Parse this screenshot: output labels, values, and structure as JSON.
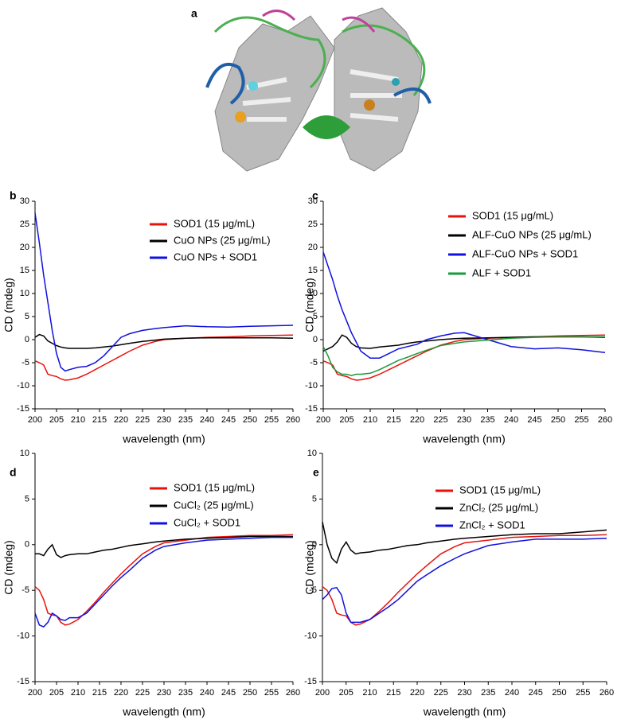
{
  "image_panel": {
    "label": "a"
  },
  "chart_data": [
    {
      "type": "line",
      "label": "b",
      "xlabel": "wavelength (nm)",
      "ylabel": "CD (mdeg)",
      "legend": "upper right",
      "xlim": [
        200,
        260
      ],
      "xticks": [
        200,
        205,
        210,
        215,
        220,
        225,
        230,
        235,
        240,
        245,
        250,
        255,
        260
      ],
      "ylim": [
        -15,
        30
      ],
      "yticks": [
        -15,
        -10,
        -5,
        0,
        5,
        10,
        15,
        20,
        25,
        30
      ],
      "x": [
        200,
        201,
        202,
        203,
        204,
        205,
        206,
        207,
        208,
        210,
        212,
        214,
        216,
        218,
        220,
        222,
        225,
        228,
        230,
        235,
        240,
        245,
        250,
        255,
        260
      ],
      "series": [
        {
          "name": "SOD1 (15 μg/mL)",
          "color": "#e8120c",
          "values": [
            -4.6,
            -5,
            -5.5,
            -7.5,
            -7.8,
            -8,
            -8.5,
            -8.8,
            -8.7,
            -8.3,
            -7.5,
            -6.5,
            -5.5,
            -4.5,
            -3.5,
            -2.5,
            -1.2,
            -0.4,
            0,
            0.3,
            0.5,
            0.6,
            0.8,
            0.9,
            1
          ]
        },
        {
          "name": "CuO NPs (25 μg/mL)",
          "color": "#000000",
          "values": [
            0.5,
            1.1,
            0.8,
            -0.3,
            -0.8,
            -1.3,
            -1.6,
            -1.8,
            -1.9,
            -1.9,
            -1.9,
            -1.8,
            -1.6,
            -1.4,
            -1.1,
            -0.8,
            -0.4,
            -0.1,
            0.1,
            0.3,
            0.4,
            0.4,
            0.4,
            0.4,
            0.3
          ]
        },
        {
          "name": "CuO NPs + SOD1",
          "color": "#1010e0",
          "values": [
            27.5,
            21,
            14,
            8,
            2,
            -3,
            -6,
            -6.8,
            -6.5,
            -6,
            -5.8,
            -5,
            -3.5,
            -1.5,
            0.5,
            1.3,
            2,
            2.4,
            2.6,
            3,
            2.8,
            2.7,
            2.9,
            3,
            3.1
          ]
        }
      ]
    },
    {
      "type": "line",
      "label": "c",
      "xlabel": "wavelength (nm)",
      "ylabel": "CD (mdeg)",
      "legend": "upper right",
      "xlim": [
        200,
        260
      ],
      "xticks": [
        200,
        205,
        210,
        215,
        220,
        225,
        230,
        235,
        240,
        245,
        250,
        255,
        260
      ],
      "ylim": [
        -15,
        30
      ],
      "yticks": [
        -15,
        -10,
        -5,
        0,
        5,
        10,
        15,
        20,
        25,
        30
      ],
      "x": [
        200,
        201,
        202,
        203,
        204,
        205,
        206,
        207,
        208,
        210,
        212,
        214,
        216,
        218,
        220,
        222,
        225,
        228,
        230,
        235,
        240,
        245,
        250,
        255,
        260
      ],
      "series": [
        {
          "name": "SOD1 (15 μg/mL)",
          "color": "#e8120c",
          "values": [
            -4.6,
            -5,
            -5.5,
            -7.5,
            -7.8,
            -8,
            -8.5,
            -8.8,
            -8.7,
            -8.3,
            -7.5,
            -6.5,
            -5.5,
            -4.5,
            -3.5,
            -2.5,
            -1.2,
            -0.4,
            0,
            0.3,
            0.5,
            0.6,
            0.8,
            0.9,
            1
          ]
        },
        {
          "name": "ALF-CuO NPs (25 μg/mL)",
          "color": "#000000",
          "values": [
            -2.5,
            -2,
            -1.5,
            -0.5,
            1,
            0.5,
            -0.8,
            -1.5,
            -1.8,
            -1.9,
            -1.6,
            -1.4,
            -1.2,
            -0.8,
            -0.5,
            -0.3,
            0,
            0.2,
            0.3,
            0.4,
            0.5,
            0.6,
            0.6,
            0.6,
            0.5
          ]
        },
        {
          "name": "ALF-CuO NPs + SOD1",
          "color": "#1010e0",
          "values": [
            19,
            16,
            13,
            9.5,
            6.5,
            4,
            1.5,
            -0.5,
            -2.5,
            -4,
            -4,
            -3,
            -2,
            -1.5,
            -1,
            0,
            0.8,
            1.4,
            1.5,
            0,
            -1.5,
            -2,
            -1.8,
            -2.2,
            -2.8
          ]
        },
        {
          "name": "ALF + SOD1",
          "color": "#1a9a3a",
          "values": [
            -1.5,
            -3.5,
            -6,
            -7,
            -7.5,
            -7.5,
            -7.8,
            -7.5,
            -7.5,
            -7.3,
            -6.5,
            -5.5,
            -4.5,
            -3.8,
            -3,
            -2.3,
            -1.3,
            -0.8,
            -0.5,
            -0.1,
            0.3,
            0.5,
            0.6,
            0.6,
            0.6
          ]
        }
      ]
    },
    {
      "type": "line",
      "label": "d",
      "xlabel": "wavelength (nm)",
      "ylabel": "CD (mdeg)",
      "legend": "upper right",
      "xlim": [
        200,
        260
      ],
      "xticks": [
        200,
        205,
        210,
        215,
        220,
        225,
        230,
        235,
        240,
        245,
        250,
        255,
        260
      ],
      "ylim": [
        -15,
        10
      ],
      "yticks": [
        -15,
        -10,
        -5,
        0,
        5,
        10
      ],
      "x": [
        200,
        201,
        202,
        203,
        204,
        205,
        206,
        207,
        208,
        210,
        212,
        214,
        216,
        218,
        220,
        222,
        225,
        228,
        230,
        235,
        240,
        245,
        250,
        255,
        260
      ],
      "series": [
        {
          "name": "SOD1 (15 μg/mL)",
          "color": "#e8120c",
          "values": [
            -4.6,
            -5,
            -6,
            -7.5,
            -7.7,
            -7.8,
            -8.5,
            -8.8,
            -8.7,
            -8.2,
            -7.3,
            -6.3,
            -5.2,
            -4.2,
            -3.2,
            -2.3,
            -1,
            -0.2,
            0.2,
            0.5,
            0.8,
            0.9,
            1,
            1,
            1.1
          ]
        },
        {
          "name": "CuCl₂ (25 μg/mL)",
          "color": "#000000",
          "values": [
            -1,
            -1,
            -1.2,
            -0.5,
            0,
            -1.1,
            -1.4,
            -1.2,
            -1.1,
            -1,
            -1,
            -0.8,
            -0.6,
            -0.5,
            -0.3,
            -0.1,
            0.1,
            0.3,
            0.4,
            0.6,
            0.7,
            0.8,
            0.9,
            0.9,
            0.9
          ]
        },
        {
          "name": "CuCl₂ + SOD1",
          "color": "#1010e0",
          "values": [
            -7.5,
            -8.8,
            -9,
            -8.5,
            -7.5,
            -7.8,
            -8.2,
            -8.3,
            -8,
            -8,
            -7.5,
            -6.5,
            -5.5,
            -4.5,
            -3.6,
            -2.8,
            -1.5,
            -0.6,
            -0.2,
            0.2,
            0.5,
            0.6,
            0.7,
            0.8,
            0.8
          ]
        }
      ]
    },
    {
      "type": "line",
      "label": "e",
      "xlabel": "wavelength (nm)",
      "ylabel": "CD (mdeg)",
      "legend": "upper right",
      "xlim": [
        200,
        260
      ],
      "xticks": [
        200,
        205,
        210,
        215,
        220,
        225,
        230,
        235,
        240,
        245,
        250,
        255,
        260
      ],
      "ylim": [
        -15,
        10
      ],
      "yticks": [
        -15,
        -10,
        -5,
        0,
        5,
        10
      ],
      "x": [
        200,
        201,
        202,
        203,
        204,
        205,
        206,
        207,
        208,
        210,
        212,
        214,
        216,
        218,
        220,
        222,
        225,
        228,
        230,
        235,
        240,
        245,
        250,
        255,
        260
      ],
      "series": [
        {
          "name": "SOD1 (15 μg/mL)",
          "color": "#e8120c",
          "values": [
            -4.6,
            -5,
            -6,
            -7.5,
            -7.7,
            -7.8,
            -8.5,
            -8.8,
            -8.7,
            -8.2,
            -7.3,
            -6.3,
            -5.2,
            -4.2,
            -3.2,
            -2.3,
            -1,
            -0.2,
            0.2,
            0.5,
            0.8,
            0.9,
            1,
            1,
            1.1
          ]
        },
        {
          "name": "ZnCl₂ (25 μg/mL)",
          "color": "#000000",
          "values": [
            2.5,
            0,
            -1.5,
            -2,
            -0.5,
            0.3,
            -0.6,
            -1,
            -0.9,
            -0.8,
            -0.6,
            -0.5,
            -0.3,
            -0.1,
            0,
            0.2,
            0.4,
            0.6,
            0.7,
            0.9,
            1.1,
            1.2,
            1.2,
            1.4,
            1.6
          ]
        },
        {
          "name": "ZnCl₂ + SOD1",
          "color": "#1010e0",
          "values": [
            -6,
            -5.5,
            -4.8,
            -4.7,
            -5.5,
            -7.5,
            -8.5,
            -8.5,
            -8.5,
            -8.2,
            -7.5,
            -6.8,
            -6,
            -5,
            -4,
            -3.3,
            -2.3,
            -1.5,
            -1,
            -0.1,
            0.3,
            0.6,
            0.6,
            0.6,
            0.7
          ]
        }
      ]
    }
  ]
}
